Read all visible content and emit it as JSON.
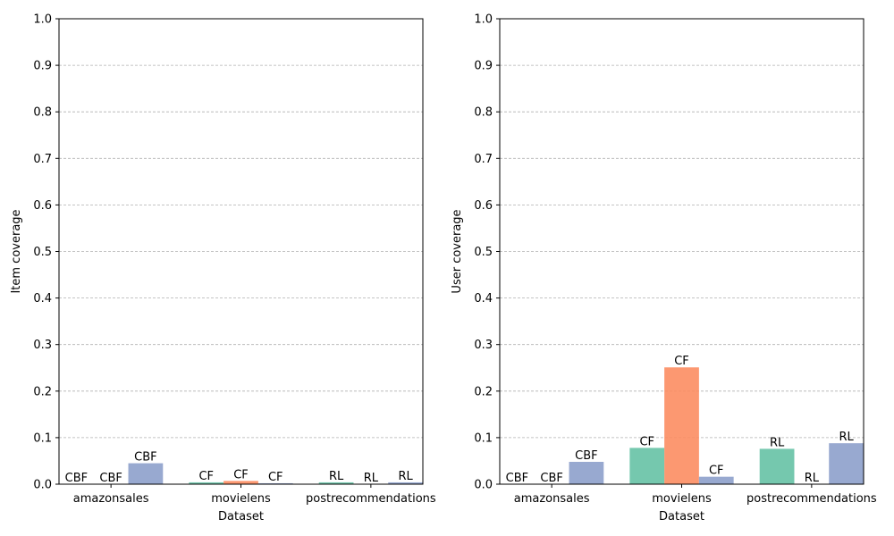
{
  "colors": {
    "series1": "#66c2a5",
    "series2": "#fc8d62",
    "series3": "#8da0cb",
    "grid": "#b0b0b0"
  },
  "chart_data": [
    {
      "type": "bar",
      "xlabel": "Dataset",
      "ylabel": "Item coverage",
      "ylim": [
        0,
        1.0
      ],
      "yticks": [
        "0.0",
        "0.1",
        "0.2",
        "0.3",
        "0.4",
        "0.5",
        "0.6",
        "0.7",
        "0.8",
        "0.9",
        "1.0"
      ],
      "grid": "horizontal dashed",
      "categories": [
        "amazonsales",
        "movielens",
        "postrecommendations"
      ],
      "series": [
        {
          "values": [
            0.0,
            0.004,
            0.004
          ],
          "labels": [
            "CBF",
            "CF",
            "RL"
          ]
        },
        {
          "values": [
            0.0,
            0.007,
            0.0
          ],
          "labels": [
            "CBF",
            "CF",
            "RL"
          ]
        },
        {
          "values": [
            0.045,
            0.002,
            0.004
          ],
          "labels": [
            "CBF",
            "CF",
            "RL"
          ]
        }
      ]
    },
    {
      "type": "bar",
      "xlabel": "Dataset",
      "ylabel": "User coverage",
      "ylim": [
        0,
        1.0
      ],
      "yticks": [
        "0.0",
        "0.1",
        "0.2",
        "0.3",
        "0.4",
        "0.5",
        "0.6",
        "0.7",
        "0.8",
        "0.9",
        "1.0"
      ],
      "grid": "horizontal dashed",
      "categories": [
        "amazonsales",
        "movielens",
        "postrecommendations"
      ],
      "series": [
        {
          "values": [
            0.0,
            0.078,
            0.076
          ],
          "labels": [
            "CBF",
            "CF",
            "RL"
          ]
        },
        {
          "values": [
            0.0,
            0.251,
            0.0
          ],
          "labels": [
            "CBF",
            "CF",
            "RL"
          ]
        },
        {
          "values": [
            0.048,
            0.016,
            0.088
          ],
          "labels": [
            "CBF",
            "CF",
            "RL"
          ]
        }
      ]
    }
  ]
}
